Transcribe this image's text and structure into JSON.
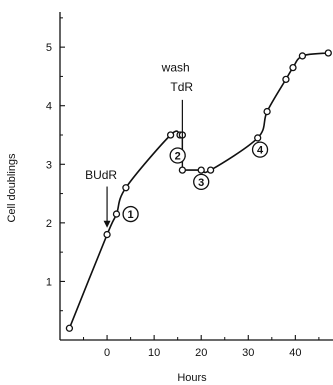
{
  "chart_data": {
    "type": "line",
    "title": "",
    "xlabel": "Hours",
    "ylabel": "Cell doublings",
    "xlim": [
      -10,
      48
    ],
    "ylim": [
      0,
      5.6
    ],
    "xticks": [
      0,
      10,
      20,
      30,
      40
    ],
    "yticks": [
      1,
      2,
      3,
      4,
      5
    ],
    "xtick_labels": [
      "0",
      "10",
      "20",
      "30",
      "40"
    ],
    "ytick_labels": [
      "1",
      "2",
      "3",
      "4",
      "5"
    ],
    "grid": false,
    "series": [
      {
        "points": [
          [
            -8,
            0.2
          ],
          [
            0,
            1.8
          ],
          [
            2,
            2.15
          ],
          [
            4,
            2.6
          ],
          [
            13.5,
            3.5
          ],
          [
            15.5,
            3.5
          ],
          [
            16,
            3.5
          ],
          [
            16,
            2.9
          ],
          [
            20,
            2.9
          ],
          [
            22,
            2.9
          ],
          [
            32,
            3.45
          ],
          [
            34,
            3.9
          ],
          [
            38,
            4.45
          ],
          [
            39.5,
            4.65
          ],
          [
            41.5,
            4.85
          ],
          [
            47,
            4.9
          ]
        ],
        "segments": [
          [
            0,
            6
          ],
          [
            7,
            15
          ]
        ]
      }
    ],
    "annotations": [
      {
        "text": "BUdR",
        "x": 0,
        "arrow_to_y": 1.9
      },
      {
        "text": "wash",
        "x": 15
      },
      {
        "text": "TdR",
        "x": 16,
        "arrow_to_y": 3.0
      }
    ],
    "stages": [
      {
        "label": "1",
        "x": 5,
        "y": 2.15
      },
      {
        "label": "2",
        "x": 15,
        "y": 3.15
      },
      {
        "label": "3",
        "x": 20,
        "y": 2.7
      },
      {
        "label": "4",
        "x": 32.5,
        "y": 3.25
      }
    ]
  }
}
